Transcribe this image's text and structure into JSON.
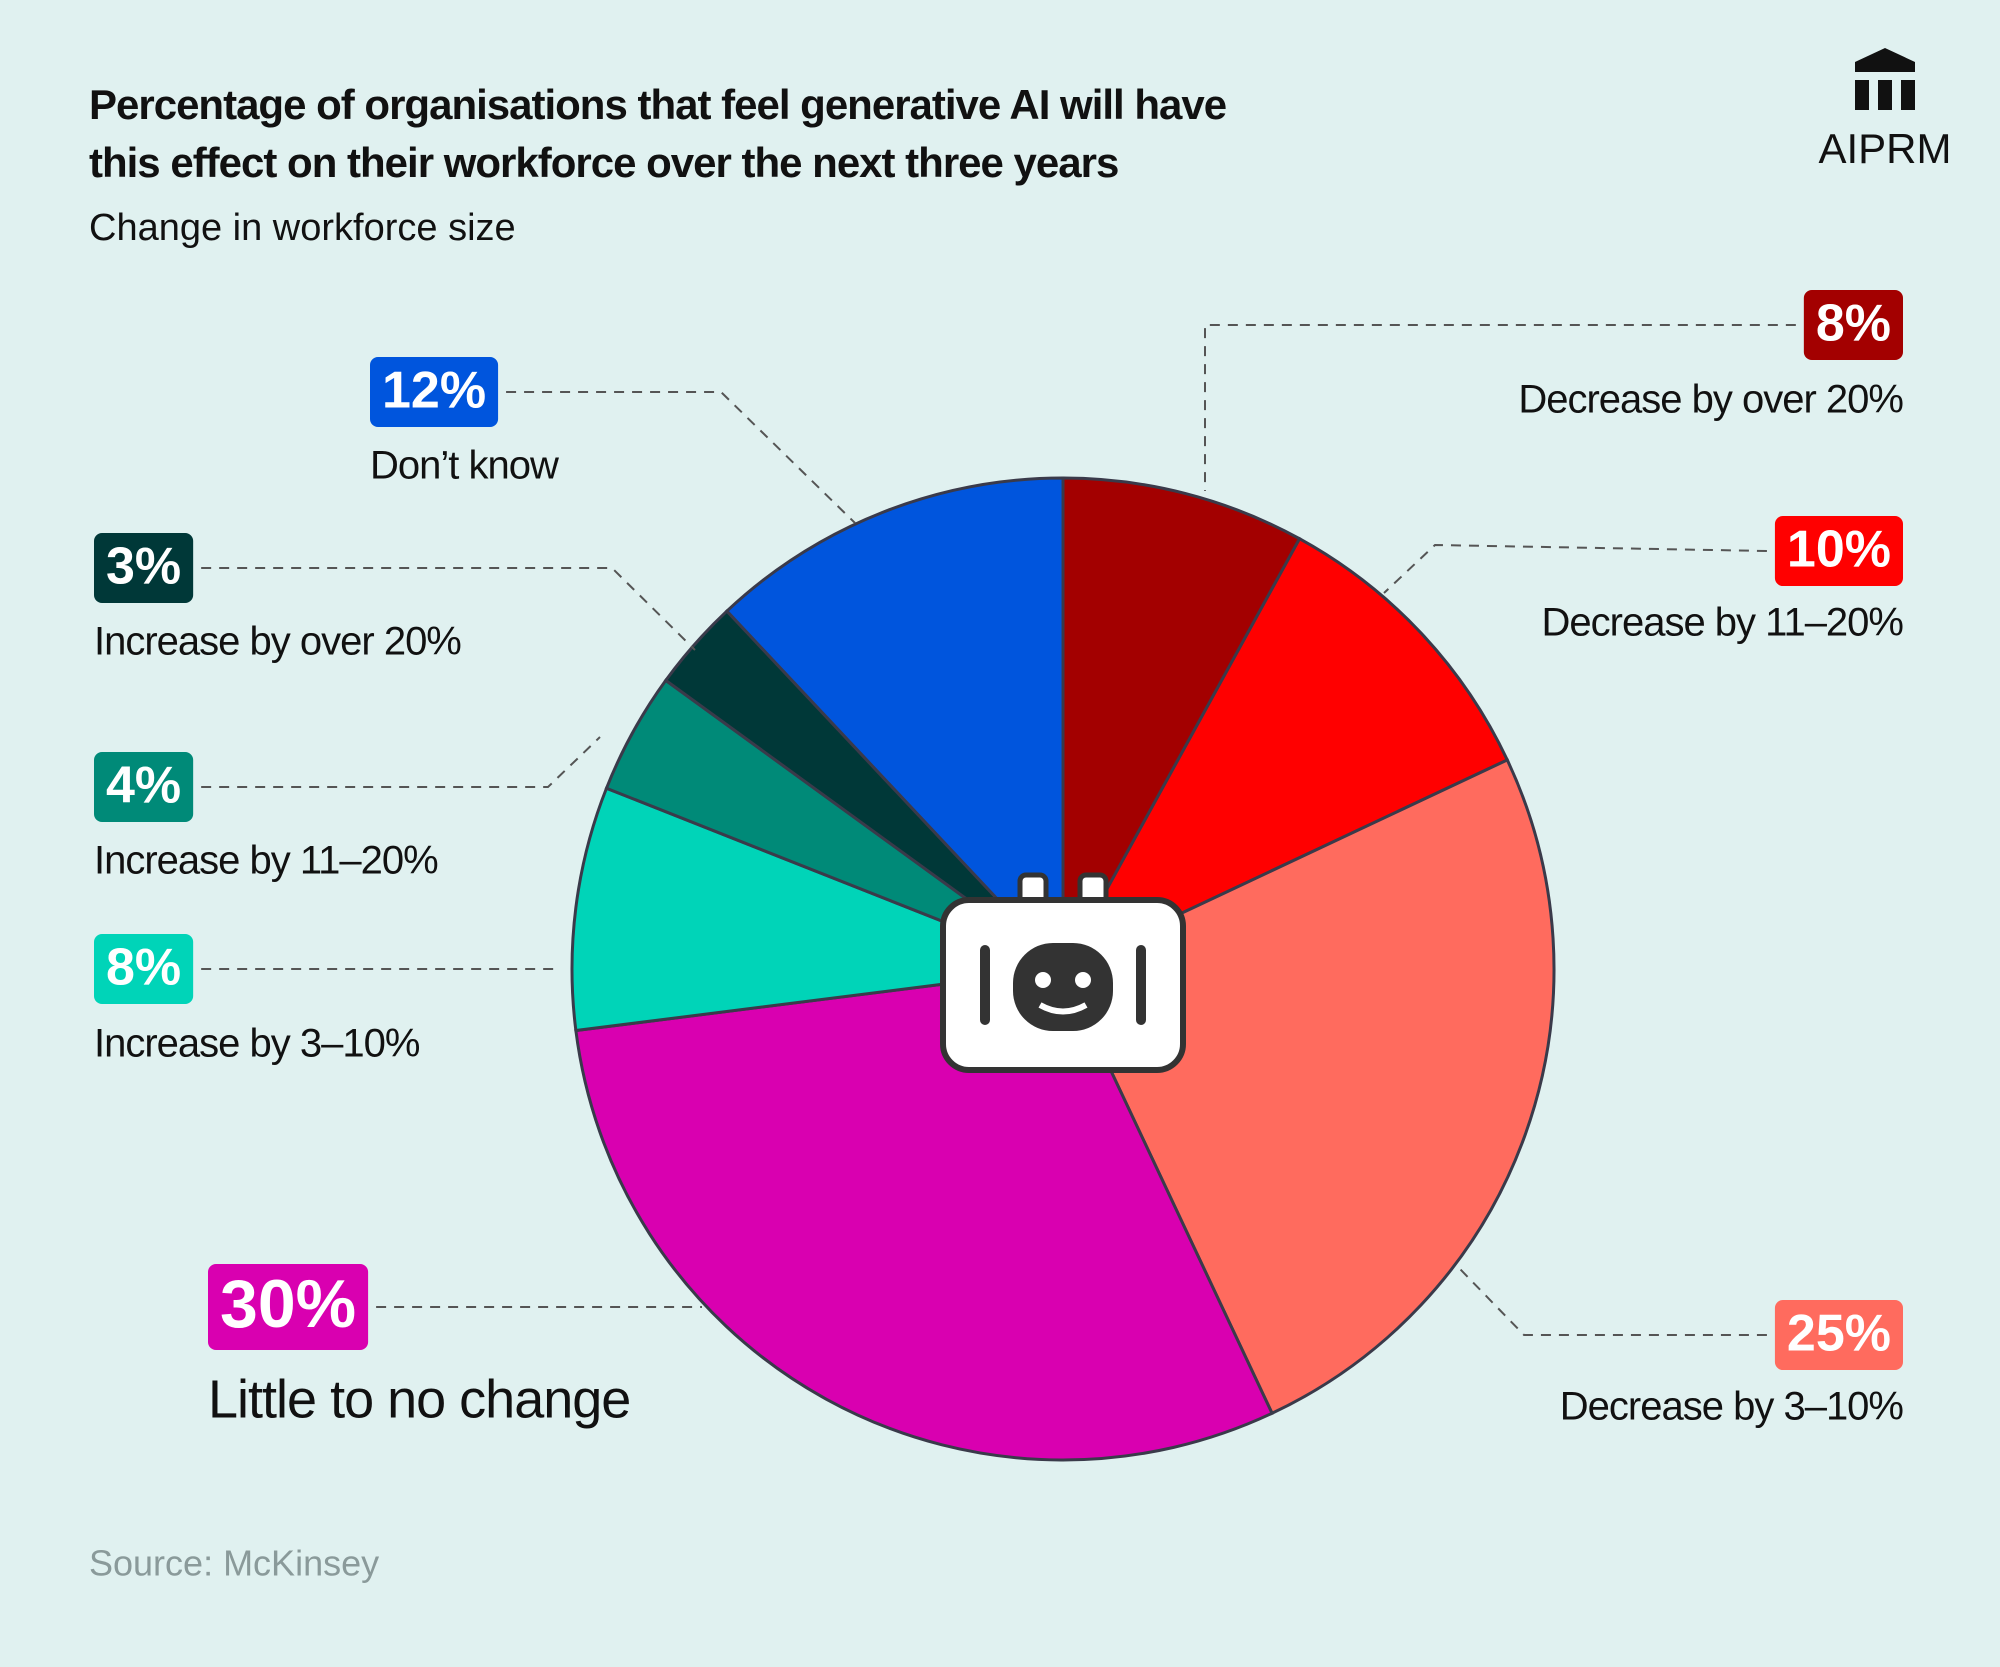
{
  "chart_data": {
    "type": "pie",
    "title": "Percentage of organisations that feel generative AI will have this effect on their workforce over the next three years",
    "title_lines": [
      "Percentage of organisations that feel generative AI will have",
      "this effect on their workforce over the next three years"
    ],
    "subtitle": "Change in workforce size",
    "source": "Source: McKinsey",
    "logo_text": "AIPRM",
    "categories": [
      "Decrease by over 20%",
      "Decrease by 11–20%",
      "Decrease by 3–10%",
      "Little to no change",
      "Increase by 3–10%",
      "Increase by 11–20%",
      "Increase by over 20%",
      "Don’t know"
    ],
    "values": [
      8,
      10,
      25,
      30,
      8,
      4,
      3,
      12
    ],
    "value_labels": [
      "8%",
      "10%",
      "25%",
      "30%",
      "8%",
      "4%",
      "3%",
      "12%"
    ],
    "colors": [
      "#a30000",
      "#ff0000",
      "#ff6b5e",
      "#d900b0",
      "#00d4b8",
      "#008a78",
      "#003838",
      "#0055dd"
    ]
  }
}
